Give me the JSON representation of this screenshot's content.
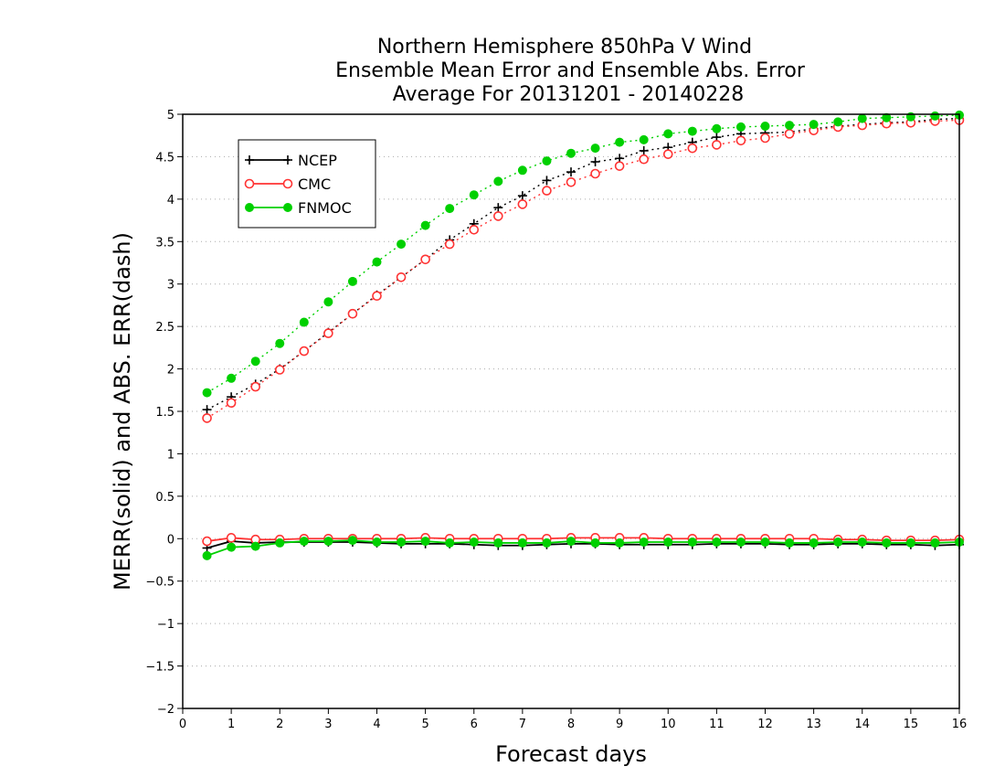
{
  "chart_data": {
    "type": "line",
    "title": [
      "Northern Hemisphere 850hPa V Wind",
      "Ensemble Mean Error and Ensemble Abs. Error",
      "Average For 20131201 - 20140228"
    ],
    "xlabel": "Forecast days",
    "ylabel": "MERR(solid) and ABS. ERR(dash)",
    "xlim": [
      0,
      16
    ],
    "ylim": [
      -2,
      5
    ],
    "xticks": [
      0,
      1,
      2,
      3,
      4,
      5,
      6,
      7,
      8,
      9,
      10,
      11,
      12,
      13,
      14,
      15,
      16
    ],
    "yticks": [
      -2,
      -1.5,
      -1,
      -0.5,
      0,
      0.5,
      1,
      1.5,
      2,
      2.5,
      3,
      3.5,
      4,
      4.5,
      5
    ],
    "grid": "horizontal-dotted",
    "legend_position": "top-left",
    "x": [
      0.5,
      1,
      1.5,
      2,
      2.5,
      3,
      3.5,
      4,
      4.5,
      5,
      5.5,
      6,
      6.5,
      7,
      7.5,
      8,
      8.5,
      9,
      9.5,
      10,
      10.5,
      11,
      11.5,
      12,
      12.5,
      13,
      13.5,
      14,
      14.5,
      15,
      15.5,
      16
    ],
    "series": [
      {
        "name": "NCEP",
        "color": "#000000",
        "marker": "plus",
        "abs_err": [
          1.52,
          1.67,
          1.82,
          2.0,
          2.21,
          2.43,
          2.65,
          2.87,
          3.08,
          3.29,
          3.52,
          3.71,
          3.9,
          4.04,
          4.22,
          4.32,
          4.44,
          4.48,
          4.57,
          4.61,
          4.67,
          4.73,
          4.77,
          4.78,
          4.79,
          4.83,
          4.86,
          4.88,
          4.9,
          4.91,
          4.94,
          4.95
        ],
        "mean_err": [
          -0.11,
          -0.03,
          -0.05,
          -0.04,
          -0.04,
          -0.04,
          -0.04,
          -0.05,
          -0.06,
          -0.06,
          -0.06,
          -0.07,
          -0.08,
          -0.08,
          -0.07,
          -0.06,
          -0.06,
          -0.07,
          -0.07,
          -0.07,
          -0.07,
          -0.06,
          -0.06,
          -0.06,
          -0.07,
          -0.07,
          -0.06,
          -0.06,
          -0.07,
          -0.07,
          -0.08,
          -0.07
        ]
      },
      {
        "name": "CMC",
        "color": "#ff3333",
        "marker": "open-circle",
        "abs_err": [
          1.42,
          1.6,
          1.79,
          1.99,
          2.21,
          2.42,
          2.65,
          2.86,
          3.08,
          3.29,
          3.47,
          3.64,
          3.8,
          3.94,
          4.1,
          4.2,
          4.3,
          4.39,
          4.47,
          4.53,
          4.6,
          4.64,
          4.69,
          4.72,
          4.77,
          4.81,
          4.85,
          4.87,
          4.89,
          4.9,
          4.92,
          4.93
        ],
        "mean_err": [
          -0.03,
          0.01,
          -0.01,
          -0.01,
          0.0,
          0.0,
          0.0,
          0.0,
          0.0,
          0.01,
          0.0,
          0.0,
          0.0,
          0.0,
          0.0,
          0.01,
          0.01,
          0.01,
          0.01,
          0.0,
          0.0,
          0.0,
          0.0,
          0.0,
          0.0,
          0.0,
          -0.01,
          -0.01,
          -0.02,
          -0.02,
          -0.02,
          -0.01
        ]
      },
      {
        "name": "FNMOC",
        "color": "#00d000",
        "marker": "filled-circle",
        "abs_err": [
          1.72,
          1.89,
          2.09,
          2.3,
          2.55,
          2.79,
          3.03,
          3.26,
          3.47,
          3.69,
          3.89,
          4.05,
          4.21,
          4.34,
          4.45,
          4.54,
          4.6,
          4.67,
          4.7,
          4.77,
          4.8,
          4.83,
          4.85,
          4.86,
          4.87,
          4.88,
          4.91,
          4.95,
          4.96,
          4.97,
          4.98,
          4.99
        ],
        "mean_err": [
          -0.2,
          -0.1,
          -0.09,
          -0.05,
          -0.03,
          -0.03,
          -0.02,
          -0.04,
          -0.04,
          -0.03,
          -0.05,
          -0.04,
          -0.05,
          -0.05,
          -0.05,
          -0.03,
          -0.05,
          -0.05,
          -0.04,
          -0.04,
          -0.04,
          -0.04,
          -0.04,
          -0.04,
          -0.05,
          -0.05,
          -0.04,
          -0.04,
          -0.05,
          -0.05,
          -0.05,
          -0.04
        ]
      }
    ]
  }
}
